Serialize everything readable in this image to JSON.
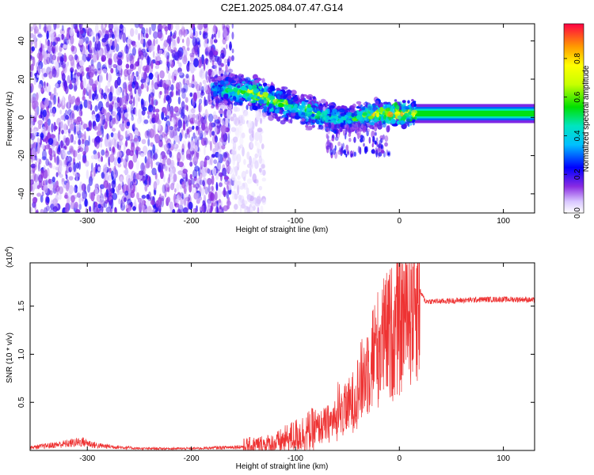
{
  "title": "C2E1.2025.084.07.47.G14",
  "chart_data": [
    {
      "type": "heatmap",
      "title": "",
      "xlabel": "Height of straight line (km)",
      "ylabel": "Frequency (Hz)",
      "xlim": [
        -355,
        130
      ],
      "ylim": [
        -50,
        49
      ],
      "xticks": [
        -300,
        -200,
        -100,
        0,
        100
      ],
      "yticks": [
        -40,
        -20,
        0,
        20,
        40
      ],
      "colorbar": {
        "label": "Normalized spectral amplitude",
        "range": [
          0.0,
          0.98
        ],
        "ticks": [
          0.0,
          0.2,
          0.4,
          0.6,
          0.8
        ]
      },
      "regions": [
        {
          "desc": "broadband noise",
          "x_range": [
            -355,
            -160
          ],
          "freq_range": [
            -50,
            49
          ],
          "amplitude": 0.12
        },
        {
          "desc": "diffuse transition",
          "x_range": [
            -160,
            -130
          ],
          "freq_range": [
            -50,
            5
          ],
          "amplitude": 0.04
        }
      ],
      "ridge": [
        {
          "x": -180,
          "freq": 15,
          "amp": 0.35
        },
        {
          "x": -160,
          "freq": 14,
          "amp": 0.45
        },
        {
          "x": -140,
          "freq": 13,
          "amp": 0.6
        },
        {
          "x": -120,
          "freq": 8,
          "amp": 0.55
        },
        {
          "x": -100,
          "freq": 5,
          "amp": 0.5
        },
        {
          "x": -80,
          "freq": 2,
          "amp": 0.45
        },
        {
          "x": -60,
          "freq": -1,
          "amp": 0.42
        },
        {
          "x": -40,
          "freq": 0,
          "amp": 0.48
        },
        {
          "x": -20,
          "freq": 2,
          "amp": 0.62
        },
        {
          "x": 0,
          "freq": 2,
          "amp": 0.78
        },
        {
          "x": 20,
          "freq": 2,
          "amp": 0.55
        },
        {
          "x": 60,
          "freq": 2,
          "amp": 0.5
        },
        {
          "x": 100,
          "freq": 2,
          "amp": 0.5
        },
        {
          "x": 130,
          "freq": 2,
          "amp": 0.5
        }
      ]
    },
    {
      "type": "line",
      "title": "",
      "xlabel": "Height of straight line (km)",
      "ylabel": "SNR (10 * v/v)",
      "scale_label": "(x10",
      "scale_exponent": "4",
      "xlim": [
        -355,
        130
      ],
      "ylim": [
        0,
        1.95
      ],
      "xticks": [
        -300,
        -200,
        -100,
        0,
        100
      ],
      "yticks": [
        0.5,
        1.0,
        1.5
      ],
      "ytick_labels": [
        "0.5",
        "1.0",
        "1.5"
      ],
      "series": [
        {
          "color": "#ee3333",
          "x": [
            -355,
            -320,
            -305,
            -290,
            -250,
            -200,
            -170,
            -150,
            -120,
            -100,
            -80,
            -60,
            -45,
            -35,
            -25,
            -15,
            -5,
            5,
            12,
            20,
            25,
            40,
            60,
            80,
            100,
            120,
            130
          ],
          "y": [
            0.03,
            0.07,
            0.09,
            0.05,
            0.02,
            0.02,
            0.03,
            0.04,
            0.07,
            0.15,
            0.22,
            0.32,
            0.5,
            0.75,
            1.0,
            1.15,
            1.25,
            1.4,
            1.55,
            1.65,
            1.55,
            1.55,
            1.56,
            1.57,
            1.57,
            1.57,
            1.56
          ]
        }
      ]
    }
  ]
}
